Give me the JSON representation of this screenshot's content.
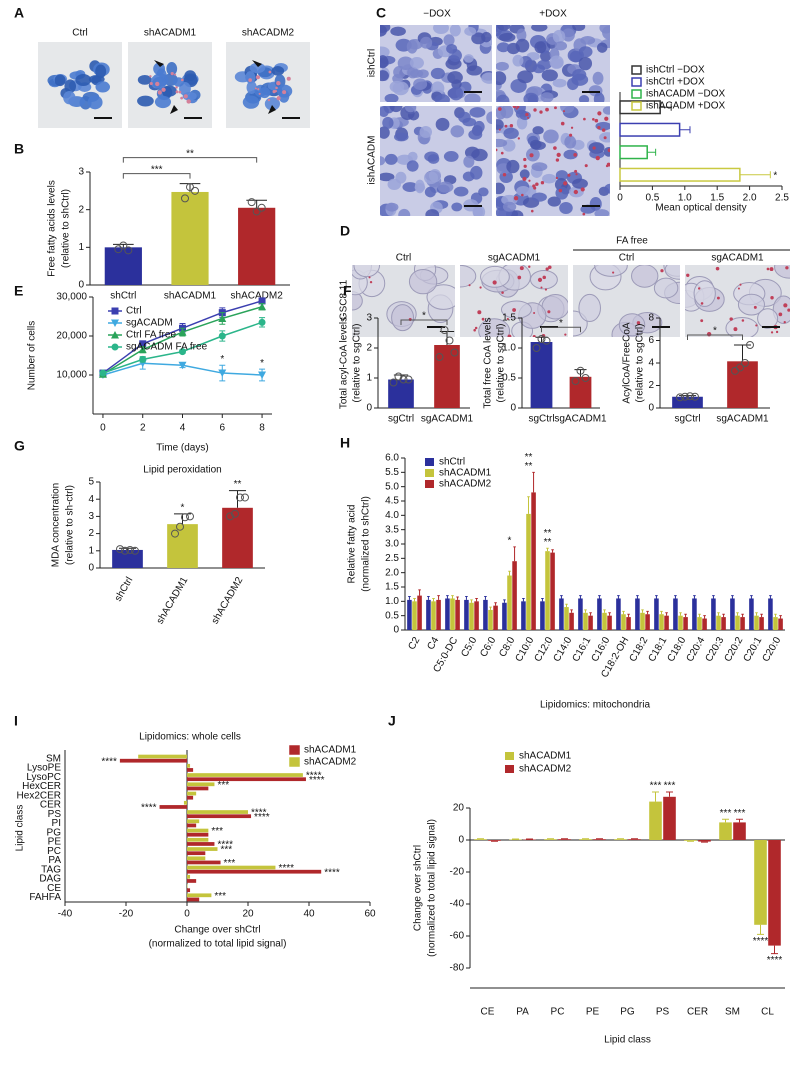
{
  "figure": {
    "panel_labels": [
      "A",
      "B",
      "C",
      "D",
      "E",
      "F",
      "G",
      "H",
      "I",
      "J"
    ],
    "panel_A": {
      "titles": [
        "Ctrl",
        "shACADM1",
        "shACADM2"
      ]
    },
    "panel_C": {
      "columns": [
        "−DOX",
        "+DOX"
      ],
      "rows": [
        "ishCtrl",
        "ishACADM"
      ]
    },
    "panel_D": {
      "columns": [
        "Ctrl",
        "sgACADM1",
        "Ctrl",
        "sgACADM1"
      ],
      "group": "FA free",
      "row": "GSC8.11"
    }
  },
  "chart_data": [
    {
      "type": "hbar",
      "xlim": [
        0,
        2.5
      ],
      "xticks": [
        0,
        0.5,
        {
          "value": 1,
          "label": "1.0"
        },
        1.5,
        {
          "value": 2,
          "label": "2.0"
        },
        2.5
      ],
      "x_label": [
        "Mean optical density"
      ],
      "open_bars": true,
      "series": [
        {
          "name": "ishCtrl −DOX",
          "color": "#333333",
          "values": [
            0.62
          ],
          "errors": [
            0.17
          ]
        },
        {
          "name": "ishCtrl +DOX",
          "color": "#3b3fb0",
          "values": [
            0.92
          ],
          "errors": [
            0.16
          ]
        },
        {
          "name": "ishACADM −DOX",
          "color": "#2fb34a",
          "values": [
            0.42
          ],
          "errors": [
            0.13
          ]
        },
        {
          "name": "ishACADM +DOX",
          "color": "#c9c941",
          "values": [
            1.85
          ],
          "errors": [
            0.47
          ]
        }
      ],
      "significance": [
        {
          "text": "*",
          "series": "ishACADM +DOX"
        }
      ]
    },
    {
      "type": "bar",
      "y_label": [
        "Free fatty acids levels",
        "(relative to shCtrl)"
      ],
      "categories": [
        "shCtrl",
        "shACADM1",
        "shACADM2"
      ],
      "values": [
        1.0,
        2.47,
        2.05
      ],
      "errors": [
        0.08,
        0.22,
        0.2
      ],
      "colors": [
        "#2b309c",
        "#c4c43c",
        "#b0282b"
      ],
      "points": [
        [
          0.95,
          1.05,
          0.92
        ],
        [
          2.3,
          2.6,
          2.5
        ],
        [
          2.2,
          1.95,
          2.05
        ]
      ],
      "ylim": [
        0,
        3
      ],
      "yticks": [
        0,
        1,
        2,
        3
      ],
      "significance": [
        {
          "text": "***",
          "categories": [
            "shCtrl",
            "shACADM1"
          ]
        },
        {
          "text": "**",
          "categories": [
            "shCtrl",
            "shACADM2"
          ]
        }
      ]
    },
    {
      "type": "line",
      "x": [
        0,
        2,
        4,
        6,
        8
      ],
      "xlim": [
        -0.5,
        8.5
      ],
      "xticks": [
        0,
        2,
        4,
        6,
        8
      ],
      "ylim": [
        0,
        30000
      ],
      "yticks": [
        {
          "value": 10000,
          "label": "10,000"
        },
        {
          "value": 20000,
          "label": "20,000"
        },
        {
          "value": 30000,
          "label": "30,000"
        }
      ],
      "x_label": [
        "Time (days)"
      ],
      "y_label": [
        "Number of cells"
      ],
      "series": [
        {
          "name": "Ctrl",
          "color": "#3b3fb0",
          "marker": "square",
          "values": [
            10500,
            18000,
            22000,
            26000,
            29000
          ],
          "errors": [
            300,
            700,
            1200,
            1200,
            600
          ]
        },
        {
          "name": "sgACADM",
          "color": "#3fa9e0",
          "marker": "triangle-down",
          "values": [
            10000,
            13000,
            12500,
            10500,
            10000
          ],
          "errors": [
            400,
            1500,
            600,
            2000,
            1500
          ]
        },
        {
          "name": "Ctrl FA free",
          "color": "#2aa35a",
          "marker": "triangle",
          "values": [
            10200,
            16500,
            21000,
            24500,
            27500
          ],
          "errors": [
            300,
            800,
            1000,
            1500,
            800
          ]
        },
        {
          "name": "sgACADM FA free",
          "color": "#2bb58a",
          "marker": "circle",
          "values": [
            10500,
            14000,
            16000,
            20000,
            23500
          ],
          "errors": [
            300,
            700,
            500,
            1300,
            1200
          ]
        }
      ],
      "significance": [
        {
          "text": "*",
          "x": 6,
          "series": "sgACADM"
        },
        {
          "text": "*",
          "x": 8,
          "series": "sgACADM"
        }
      ]
    },
    {
      "type": "bar",
      "y_label": [
        "Total acyl-CoA levels",
        "(relative to sgCtrl)"
      ],
      "categories": [
        "sgCtrl",
        "sgACADM1"
      ],
      "values": [
        0.95,
        2.1
      ],
      "errors": [
        0.15,
        0.45
      ],
      "colors": [
        "#2b309c",
        "#b0282b"
      ],
      "points": [
        [
          0.85,
          1.05,
          0.95,
          0.95
        ],
        [
          1.7,
          2.6,
          2.25,
          1.85
        ]
      ],
      "ylim": [
        0,
        3
      ],
      "yticks": [
        0,
        1,
        2,
        3
      ],
      "significance": [
        {
          "text": "*",
          "categories": [
            "sgCtrl",
            "sgACADM1"
          ]
        }
      ]
    },
    {
      "type": "bar",
      "y_label": [
        "Total free CoA levels",
        "(relative to sgCtrl)"
      ],
      "categories": [
        "sgCtrl",
        "sgACADM1"
      ],
      "values": [
        1.1,
        0.52
      ],
      "errors": [
        0.08,
        0.12
      ],
      "colors": [
        "#2b309c",
        "#b0282b"
      ],
      "points": [
        [
          1.0,
          1.15,
          1.12
        ],
        [
          0.45,
          0.62,
          0.5
        ]
      ],
      "ylim": [
        0,
        1.5
      ],
      "yticks": [
        0,
        0.5,
        {
          "value": 1,
          "label": "1.0"
        },
        1.5
      ],
      "significance": [
        {
          "text": "*",
          "categories": [
            "sgCtrl",
            "sgACADM1"
          ]
        }
      ]
    },
    {
      "type": "bar",
      "y_label": [
        "AcylCoA/FreeCoA",
        "(relative to sgCtrl)"
      ],
      "categories": [
        "sgCtrl",
        "sgACADM1"
      ],
      "values": [
        1.0,
        4.15
      ],
      "errors": [
        0.1,
        1.45
      ],
      "colors": [
        "#2b309c",
        "#b0282b"
      ],
      "points": [
        [
          0.95,
          1.0,
          1.05,
          1.0
        ],
        [
          3.3,
          3.6,
          4.0,
          5.6
        ]
      ],
      "ylim": [
        0,
        8
      ],
      "yticks": [
        0,
        2,
        4,
        6,
        8
      ],
      "significance": [
        {
          "text": "*",
          "categories": [
            "sgCtrl",
            "sgACADM1"
          ]
        }
      ]
    },
    {
      "type": "bar",
      "title": "Lipid peroxidation",
      "y_label": [
        "MDA concentration",
        "(relative to sh-ctrl)"
      ],
      "categories": [
        "shCtrl",
        "shACADM1",
        "shACADM2"
      ],
      "values": [
        1.05,
        2.55,
        3.5
      ],
      "errors": [
        0.1,
        0.6,
        1.0
      ],
      "colors": [
        "#2b309c",
        "#c4c43c",
        "#b0282b"
      ],
      "points": [
        [
          1.1,
          1.0,
          1.05,
          1.0
        ],
        [
          2.0,
          2.4,
          2.95,
          3.0
        ],
        [
          3.0,
          3.15,
          4.1,
          4.1
        ]
      ],
      "ylim": [
        0,
        5
      ],
      "yticks": [
        0,
        1,
        2,
        3,
        4,
        5
      ],
      "significance": [
        {
          "text": "*",
          "category": "shACADM1"
        },
        {
          "text": "**",
          "category": "shACADM2"
        }
      ]
    },
    {
      "type": "bar",
      "x_label": [
        "Lipidomics: mitochondria"
      ],
      "y_label": [
        "Relative fatty acid",
        "(normalized to shCtrl)"
      ],
      "categories": [
        "C2",
        "C4",
        "C5:0-DC",
        "C5:0",
        "C6:0",
        "C8:0",
        "C10:0",
        "C12:0",
        "C14:0",
        "C16:1",
        "C16:0",
        "C18:2-OH",
        "C18:2",
        "C18:1",
        "C18:0",
        "C20:4",
        "C20:3",
        "C20:2",
        "C20:1",
        "C20:0"
      ],
      "series": [
        {
          "name": "shCtrl",
          "color": "#2b309c",
          "values": [
            1.05,
            1.05,
            1.1,
            1.05,
            1.05,
            0.95,
            1.0,
            1.0,
            1.1,
            1.1,
            1.1,
            1.1,
            1.1,
            1.1,
            1.1,
            1.1,
            1.1,
            1.1,
            1.1,
            1.1
          ],
          "errors": [
            0.12,
            0.12,
            0.1,
            0.12,
            0.12,
            0.1,
            0.1,
            0.1,
            0.1,
            0.1,
            0.1,
            0.1,
            0.1,
            0.1,
            0.1,
            0.1,
            0.1,
            0.1,
            0.1,
            0.1
          ]
        },
        {
          "name": "shACADM1",
          "color": "#c4c43c",
          "values": [
            1.0,
            1.0,
            1.1,
            0.95,
            0.7,
            1.9,
            4.05,
            2.75,
            0.8,
            0.6,
            0.6,
            0.55,
            0.6,
            0.55,
            0.5,
            0.45,
            0.5,
            0.5,
            0.5,
            0.45
          ],
          "errors": [
            0.1,
            0.1,
            0.1,
            0.1,
            0.1,
            0.15,
            0.6,
            0.1,
            0.1,
            0.1,
            0.1,
            0.1,
            0.1,
            0.1,
            0.1,
            0.1,
            0.1,
            0.1,
            0.1,
            0.1
          ]
        },
        {
          "name": "shACADM2",
          "color": "#b0282b",
          "values": [
            1.2,
            1.05,
            1.05,
            1.0,
            0.85,
            2.4,
            4.8,
            2.7,
            0.6,
            0.5,
            0.5,
            0.45,
            0.55,
            0.5,
            0.45,
            0.4,
            0.45,
            0.45,
            0.45,
            0.4
          ],
          "errors": [
            0.2,
            0.15,
            0.1,
            0.1,
            0.1,
            0.5,
            0.7,
            0.1,
            0.1,
            0.1,
            0.1,
            0.1,
            0.1,
            0.1,
            0.1,
            0.1,
            0.1,
            0.1,
            0.1,
            0.1
          ]
        }
      ],
      "ylim": [
        0,
        6
      ],
      "yticks": [
        0,
        0.5,
        {
          "value": 1,
          "label": "1.0"
        },
        1.5,
        {
          "value": 2,
          "label": "2.0"
        },
        2.5,
        {
          "value": 3,
          "label": "3.0"
        },
        3.5,
        {
          "value": 4,
          "label": "4.0"
        },
        4.5,
        {
          "value": 5,
          "label": "5.0"
        },
        5.5,
        {
          "value": 6,
          "label": "6.0"
        }
      ],
      "significance": [
        {
          "text": "*",
          "category": "C8:0"
        },
        {
          "text": "**",
          "category": "C10:0"
        },
        {
          "text": "**",
          "category": "C10:0"
        },
        {
          "text": "**",
          "category": "C12:0"
        },
        {
          "text": "**",
          "category": "C12:0"
        }
      ]
    },
    {
      "type": "hbar",
      "title": "Lipidomics: whole cells",
      "x_label": [
        "Change over shCtrl",
        "(normalized to total lipid signal)"
      ],
      "y_label": [
        "Lipid class"
      ],
      "xlim": [
        -40,
        60
      ],
      "xticks": [
        -40,
        -20,
        0,
        20,
        40,
        60
      ],
      "categories": [
        "SM",
        "LysoPE",
        "LysoPC",
        "HexCER",
        "Hex2CER",
        "CER",
        "PS",
        "PI",
        "PG",
        "PE",
        "PC",
        "PA",
        "TAG",
        "DAG",
        "CE",
        "FAHFA"
      ],
      "series": [
        {
          "name": "shACADM1",
          "color": "#b0282b",
          "values": [
            -22,
            2,
            39,
            7,
            2,
            -9,
            21,
            3,
            7,
            9,
            6,
            11,
            44,
            3,
            1,
            4
          ]
        },
        {
          "name": "shACADM2",
          "color": "#c4c43c",
          "values": [
            -16,
            1,
            38,
            9,
            3,
            -1,
            20,
            4,
            7,
            7,
            10,
            6,
            29,
            1,
            0,
            8
          ]
        }
      ],
      "significance": [
        {
          "text": "****",
          "category": "SM",
          "series": "shACADM1"
        },
        {
          "text": "****",
          "category": "LysoPC",
          "series": "shACADM2"
        },
        {
          "text": "****",
          "category": "LysoPC",
          "series": "shACADM1"
        },
        {
          "text": "***",
          "category": "HexCER",
          "series": "shACADM2"
        },
        {
          "text": "****",
          "category": "CER",
          "series": "shACADM1"
        },
        {
          "text": "****",
          "category": "PS",
          "series": "shACADM2"
        },
        {
          "text": "****",
          "category": "PS",
          "series": "shACADM1"
        },
        {
          "text": "***",
          "category": "PG",
          "series": "shACADM2"
        },
        {
          "text": "****",
          "category": "PE",
          "series": "shACADM1"
        },
        {
          "text": "***",
          "category": "PC",
          "series": "shACADM2"
        },
        {
          "text": "***",
          "category": "PA",
          "series": "shACADM1"
        },
        {
          "text": "****",
          "category": "TAG",
          "series": "shACADM2"
        },
        {
          "text": "****",
          "category": "TAG",
          "series": "shACADM1"
        },
        {
          "text": "***",
          "category": "FAHFA",
          "series": "shACADM2"
        }
      ]
    },
    {
      "type": "bar",
      "x_label": [
        "Lipid class"
      ],
      "y_label": [
        "Change over shCtrl",
        "(normalized to total lipid signal)"
      ],
      "categories": [
        "CE",
        "PA",
        "PC",
        "PE",
        "PG",
        "PS",
        "CER",
        "SM",
        "CL"
      ],
      "series": [
        {
          "name": "shACADM1",
          "color": "#c4c43c",
          "values": [
            0.5,
            0.3,
            0.5,
            0.5,
            0.5,
            24,
            -0.5,
            11,
            -53
          ],
          "errors": [
            0.3,
            0.3,
            0.3,
            0.3,
            0.3,
            6,
            0.3,
            2,
            6
          ]
        },
        {
          "name": "shACADM2",
          "color": "#b0282b",
          "values": [
            -0.5,
            0.3,
            0.5,
            0.5,
            0.5,
            27,
            -1,
            11,
            -66
          ],
          "errors": [
            0.3,
            0.3,
            0.3,
            0.3,
            0.3,
            3,
            0.3,
            2,
            5
          ]
        }
      ],
      "ylim": [
        -80,
        20
      ],
      "yticks": [
        -80,
        -60,
        -40,
        -20,
        0,
        20
      ],
      "significance": [
        {
          "text": "***",
          "category": "PS",
          "series": "shACADM1"
        },
        {
          "text": "***",
          "category": "PS",
          "series": "shACADM2"
        },
        {
          "text": "***",
          "category": "SM",
          "series": "shACADM1"
        },
        {
          "text": "***",
          "category": "SM",
          "series": "shACADM2"
        },
        {
          "text": "****",
          "category": "CL",
          "series": "shACADM1"
        },
        {
          "text": "****",
          "category": "CL",
          "series": "shACADM2"
        }
      ]
    }
  ]
}
